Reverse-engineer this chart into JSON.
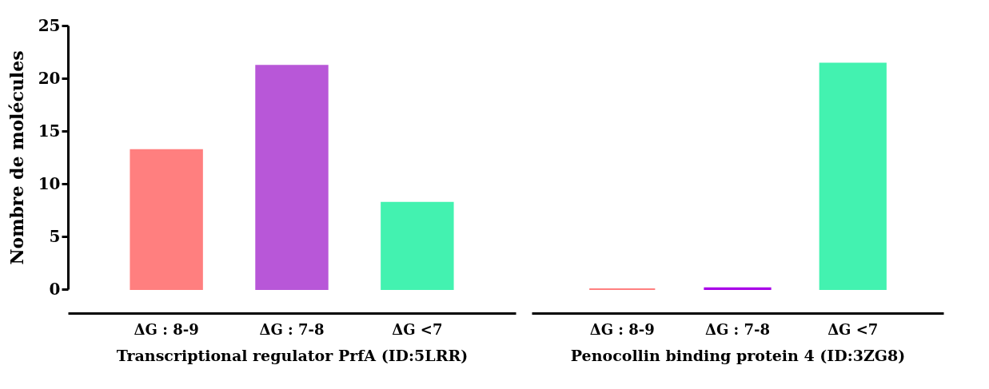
{
  "chart_data": [
    {
      "type": "bar",
      "ylabel": "Nombre de molécules",
      "xlabel": "Transcriptional regulator PrfA (ID:5LRR)",
      "categories": [
        "ΔG : 8-9",
        "ΔG : 7-8",
        "ΔG <7"
      ],
      "values": [
        13.2,
        21.2,
        8.2
      ],
      "colors": [
        "#ff7f7f",
        "#b857d8",
        "#43f2b0"
      ],
      "ylim": [
        0,
        25
      ],
      "yticks": [
        0,
        5,
        10,
        15,
        20,
        25
      ],
      "grid": false
    },
    {
      "type": "bar",
      "xlabel": "Penocollin binding protein 4 (ID:3ZG8)",
      "categories": [
        "ΔG : 8-9",
        "ΔG : 7-8",
        "ΔG <7"
      ],
      "values": [
        0,
        0.1,
        21.4
      ],
      "colors": [
        "#ff7f7f",
        "#a800e8",
        "#43f2b0"
      ],
      "ylim": [
        0,
        25
      ],
      "tick_labels": "x",
      "grid": false
    }
  ]
}
